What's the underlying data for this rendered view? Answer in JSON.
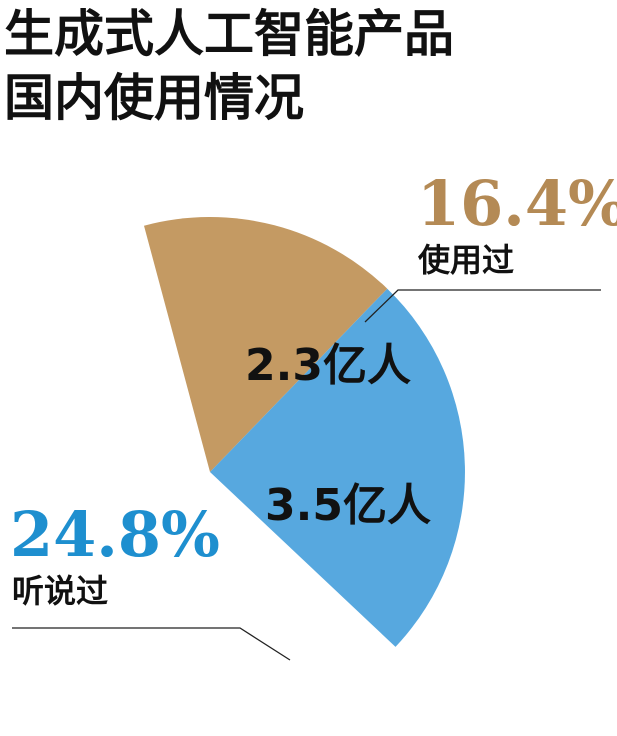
{
  "title_line1": "生成式人工智能产品",
  "title_line2": "国内使用情况",
  "chart_data": {
    "type": "pie",
    "colors": {
      "used": "#C49A63",
      "heard": "#57A8DF",
      "used_text": "#B48A55",
      "heard_text": "#1E8FCF"
    },
    "slices": [
      {
        "key": "used",
        "percent": "16.4%",
        "percent_value": 16.4,
        "label": "使用过",
        "inner_label": "2.3亿人",
        "value": 2.3
      },
      {
        "key": "heard",
        "percent": "24.8%",
        "percent_value": 24.8,
        "label": "听说过",
        "inner_label": "3.5亿人",
        "value": 3.5
      }
    ]
  }
}
